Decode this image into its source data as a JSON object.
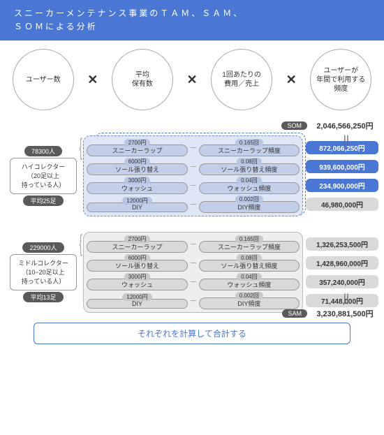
{
  "header": {
    "line1": "スニーカーメンテナンス事業のＴＡＭ、ＳＡＭ、",
    "line2": "ＳＯＭによる分析"
  },
  "formula": {
    "c1": "ユーザー数",
    "c2": "平均\n保有数",
    "c3": "1回あたりの\n費用／売上",
    "c4": "ユーザーが\n年間で利用する\n頻度",
    "mult": "✕"
  },
  "som": {
    "label": "SOM",
    "total": "2,046,566,250円"
  },
  "sam": {
    "label": "SAM",
    "total": "3,230,881,500円"
  },
  "eq": "||",
  "segments": [
    {
      "count": "78300人",
      "title": "ハイコレクター\n（20足以上\n持っている人）",
      "avg": "平均25足",
      "panel": "som",
      "services": [
        {
          "price": "2700円",
          "name": "スニーカーラップ",
          "rate": "0.165回",
          "freq": "スニーカーラップ頻度",
          "amount": "872,066,250円",
          "blue": true
        },
        {
          "price": "6000円",
          "name": "ソール張り替え",
          "rate": "0.08回",
          "freq": "ソール張り替え頻度",
          "amount": "939,600,000円",
          "blue": true
        },
        {
          "price": "3000円",
          "name": "ウォッシュ",
          "rate": "0.04回",
          "freq": "ウォッシュ頻度",
          "amount": "234,900,000円",
          "blue": true
        },
        {
          "price": "12000円",
          "name": "DIY",
          "rate": "0.002回",
          "freq": "DIY頻度",
          "amount": "46,980,000円",
          "blue": false
        }
      ]
    },
    {
      "count": "229000人",
      "title": "ミドルコレクター\n（10−20足以上\n持っている人）",
      "avg": "平均13足",
      "panel": "sam",
      "services": [
        {
          "price": "2700円",
          "name": "スニーカーラップ",
          "rate": "0.165回",
          "freq": "スニーカーラップ頻度",
          "amount": "1,326,253,500円",
          "blue": false
        },
        {
          "price": "6000円",
          "name": "ソール張り替え",
          "rate": "0.08回",
          "freq": "ソール張り替え頻度",
          "amount": "1,428,960,000円",
          "blue": false
        },
        {
          "price": "3000円",
          "name": "ウォッシュ",
          "rate": "0.04回",
          "freq": "ウォッシュ頻度",
          "amount": "357,240,000円",
          "blue": false
        },
        {
          "price": "12000円",
          "name": "DIY",
          "rate": "0.002回",
          "freq": "DIY頻度",
          "amount": "71,448,000円",
          "blue": false
        }
      ]
    }
  ],
  "footer": "それぞれを計算して合計する",
  "colors": {
    "accent": "#4a76d4",
    "som_bg": "#dfe6f5",
    "sam_bg": "#eeeeee"
  }
}
